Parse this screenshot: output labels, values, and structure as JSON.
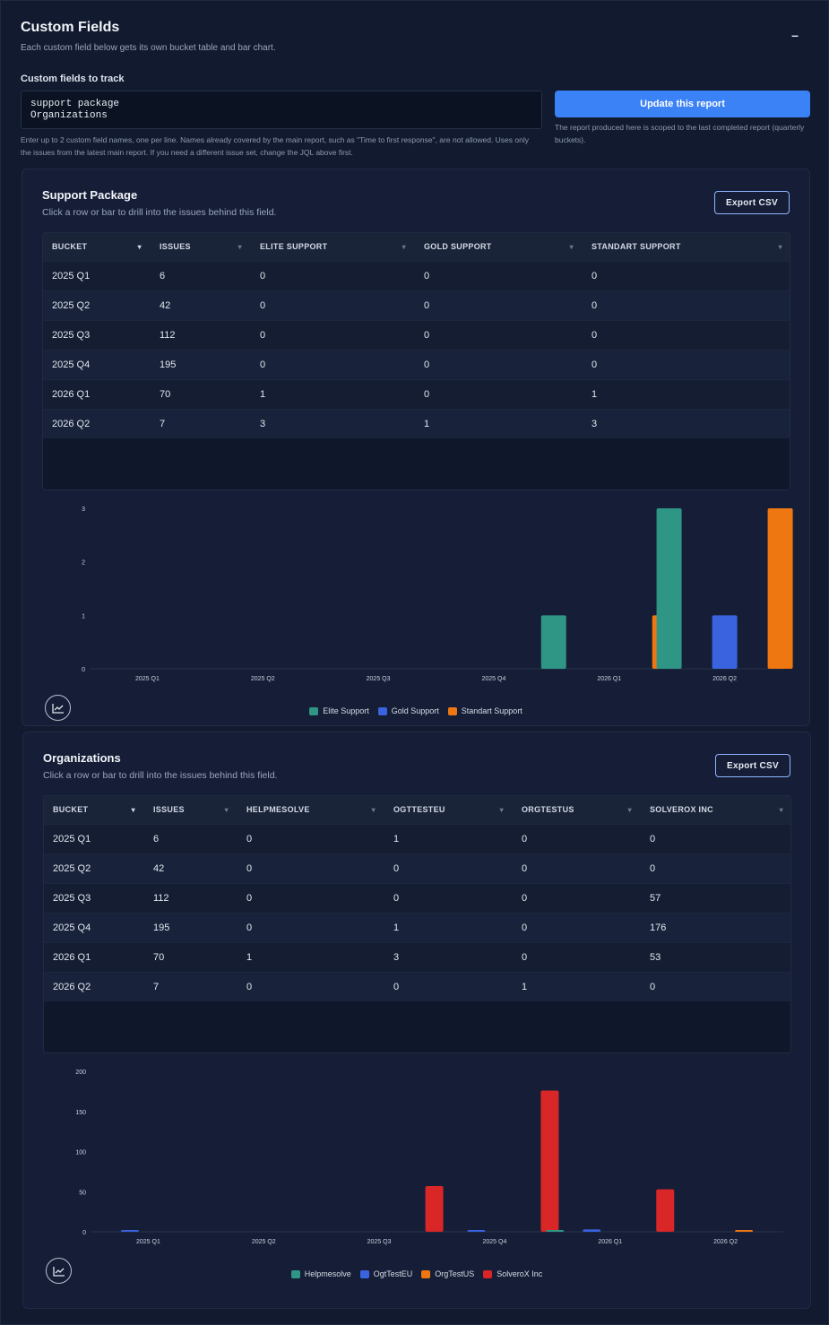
{
  "header": {
    "title": "Custom Fields",
    "subtitle": "Each custom field below gets its own bucket table and bar chart.",
    "collapse_icon": "minus-icon"
  },
  "config": {
    "label": "Custom fields to track",
    "textarea_value": "support package\nOrganizations",
    "help": "Enter up to 2 custom field names, one per line. Names already covered by the main report, such as \"Time to first response\", are not allowed. Uses only the issues from the latest main report. If you need a different issue set, change the JQL above first.",
    "update_button": "Update this report",
    "update_note": "The report produced here is scoped to the last completed report (quarterly buckets)."
  },
  "sections": [
    {
      "title": "Support Package",
      "subtitle": "Click a row or bar to drill into the issues behind this field.",
      "export_label": "Export CSV",
      "columns": [
        "BUCKET",
        "ISSUES",
        "ELITE SUPPORT",
        "GOLD SUPPORT",
        "STANDART SUPPORT"
      ],
      "rows": [
        [
          "2025 Q1",
          "6",
          "0",
          "0",
          "0"
        ],
        [
          "2025 Q2",
          "42",
          "0",
          "0",
          "0"
        ],
        [
          "2025 Q3",
          "112",
          "0",
          "0",
          "0"
        ],
        [
          "2025 Q4",
          "195",
          "0",
          "0",
          "0"
        ],
        [
          "2026 Q1",
          "70",
          "1",
          "0",
          "1"
        ],
        [
          "2026 Q2",
          "7",
          "3",
          "1",
          "3"
        ]
      ],
      "chart_button_icon": "line-chart-icon"
    },
    {
      "title": "Organizations",
      "subtitle": "Click a row or bar to drill into the issues behind this field.",
      "export_label": "Export CSV",
      "columns": [
        "BUCKET",
        "ISSUES",
        "HELPMESOLVE",
        "OGTTESTEU",
        "ORGTESTUS",
        "SOLVEROX INC"
      ],
      "rows": [
        [
          "2025 Q1",
          "6",
          "0",
          "1",
          "0",
          "0"
        ],
        [
          "2025 Q2",
          "42",
          "0",
          "0",
          "0",
          "0"
        ],
        [
          "2025 Q3",
          "112",
          "0",
          "0",
          "0",
          "57"
        ],
        [
          "2025 Q4",
          "195",
          "0",
          "1",
          "0",
          "176"
        ],
        [
          "2026 Q1",
          "70",
          "1",
          "3",
          "0",
          "53"
        ],
        [
          "2026 Q2",
          "7",
          "0",
          "0",
          "1",
          "0"
        ]
      ],
      "chart_button_icon": "line-chart-icon"
    }
  ],
  "chart_data": [
    {
      "type": "bar",
      "categories": [
        "2025 Q1",
        "2025 Q2",
        "2025 Q3",
        "2025 Q4",
        "2026 Q1",
        "2026 Q2"
      ],
      "series": [
        {
          "name": "Elite Support",
          "values": [
            0,
            0,
            0,
            0,
            1,
            3
          ],
          "color": "#2f9686"
        },
        {
          "name": "Gold Support",
          "values": [
            0,
            0,
            0,
            0,
            0,
            1
          ],
          "color": "#3a63e0"
        },
        {
          "name": "Standart Support",
          "values": [
            0,
            0,
            0,
            0,
            1,
            3
          ],
          "color": "#ee7712"
        }
      ],
      "yticks": [
        0,
        1,
        2,
        3
      ],
      "ylim": [
        0,
        3
      ],
      "legend": "bottom-center"
    },
    {
      "type": "bar",
      "categories": [
        "2025 Q1",
        "2025 Q2",
        "2025 Q3",
        "2025 Q4",
        "2026 Q1",
        "2026 Q2"
      ],
      "series": [
        {
          "name": "Helpmesolve",
          "values": [
            0,
            0,
            0,
            0,
            1,
            0
          ],
          "color": "#2f9686"
        },
        {
          "name": "OgtTestEU",
          "values": [
            1,
            0,
            0,
            1,
            3,
            0
          ],
          "color": "#3a63e0"
        },
        {
          "name": "OrgTestUS",
          "values": [
            0,
            0,
            0,
            0,
            0,
            1
          ],
          "color": "#ee7712"
        },
        {
          "name": "SolveroX Inc",
          "values": [
            0,
            0,
            57,
            176,
            53,
            0
          ],
          "color": "#d92626"
        }
      ],
      "yticks": [
        0,
        50,
        100,
        150,
        200
      ],
      "ylim": [
        0,
        200
      ],
      "legend": "bottom-center"
    }
  ]
}
